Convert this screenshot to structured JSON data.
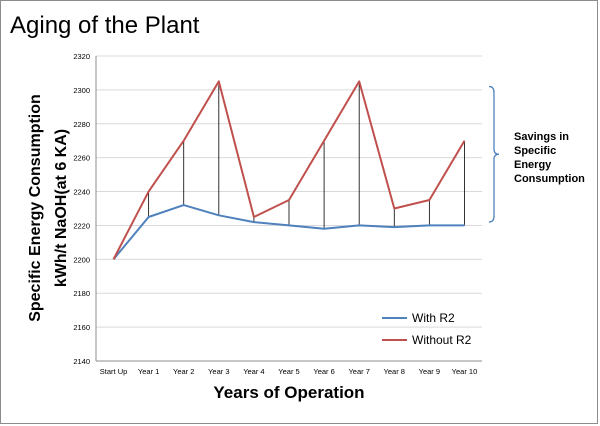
{
  "chart_data": {
    "type": "line",
    "title": "Aging of the Plant",
    "xlabel": "Years of Operation",
    "ylabel_lines": [
      "Specific Energy Consumption",
      "kWh/t NaOH(at 6 KA)"
    ],
    "categories": [
      "Start Up",
      "Year 1",
      "Year 2",
      "Year 3",
      "Year 4",
      "Year 5",
      "Year 6",
      "Year 7",
      "Year 8",
      "Year 9",
      "Year 10"
    ],
    "yticks": [
      "2140",
      "2160",
      "2180",
      "2200",
      "2220",
      "2240",
      "2260",
      "2280",
      "2300",
      "2320"
    ],
    "ylim": [
      2140,
      2320
    ],
    "grid": true,
    "legend_position": "bottom-right",
    "series": [
      {
        "name": "With R2",
        "color": "#4f81bd",
        "values": [
          2200,
          2225,
          2232,
          2226,
          2222,
          2220,
          2218,
          2220,
          2219,
          2220,
          2220
        ]
      },
      {
        "name": "Without R2",
        "color": "#c0504d",
        "values": [
          2200,
          2240,
          2270,
          2305,
          2225,
          2235,
          2270,
          2305,
          2230,
          2235,
          2270
        ]
      }
    ],
    "annotation": {
      "lines": [
        "Savings in",
        "Specific",
        "Energy",
        "Consumption"
      ],
      "brace_range": [
        2222,
        2302
      ],
      "brace_color": "#4f81bd"
    }
  }
}
